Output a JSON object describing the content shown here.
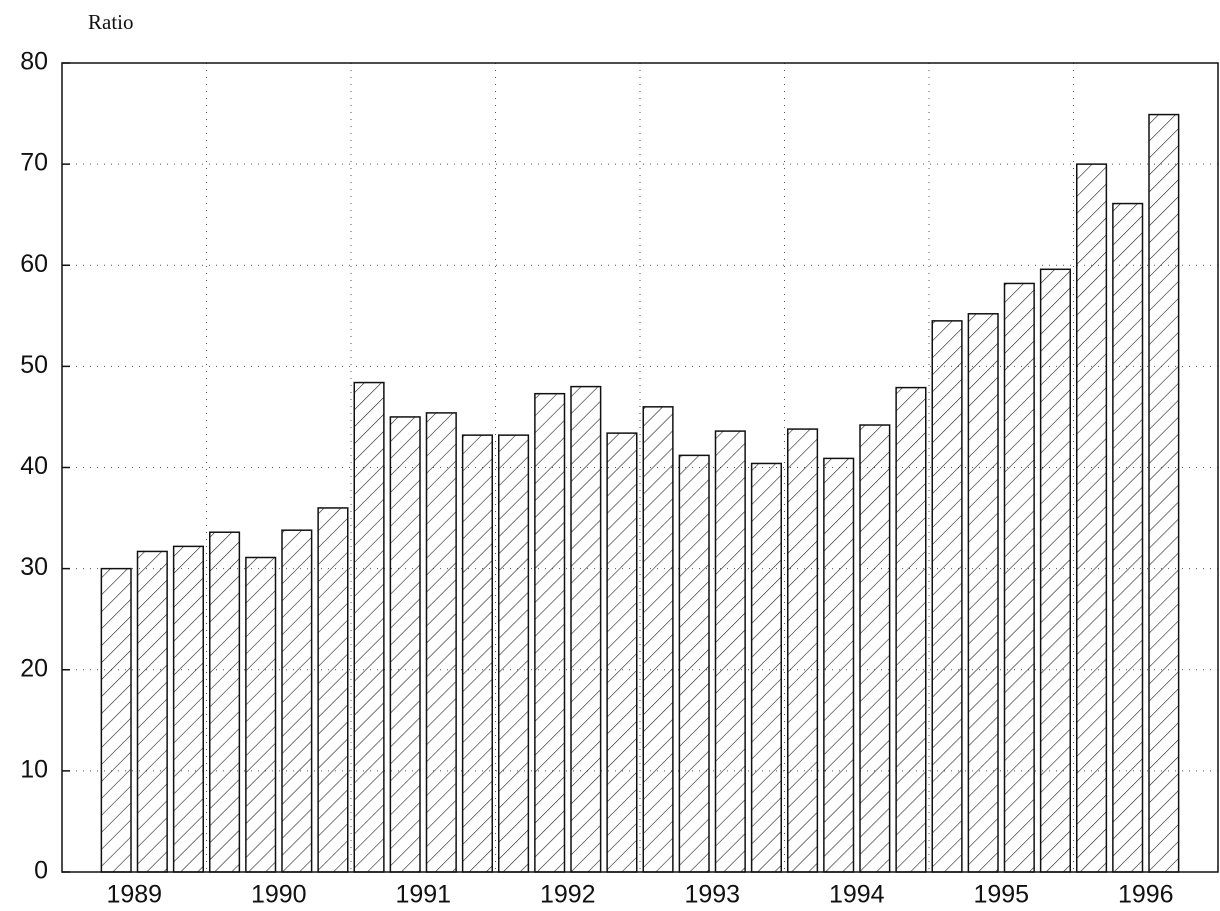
{
  "chart_data": {
    "type": "bar",
    "y_label": "Ratio",
    "groups": [
      {
        "label": "1989",
        "values": [
          30,
          31.7,
          32.2
        ]
      },
      {
        "label": "1990",
        "values": [
          33.6,
          31.1,
          33.8,
          36
        ]
      },
      {
        "label": "1991",
        "values": [
          48.4,
          45,
          45.4,
          43.2
        ]
      },
      {
        "label": "1992",
        "values": [
          43.2,
          47.3,
          48,
          43.4
        ]
      },
      {
        "label": "1993",
        "values": [
          46,
          41.2,
          43.6,
          40.4
        ]
      },
      {
        "label": "1994",
        "values": [
          43.8,
          40.9,
          44.2,
          47.9
        ]
      },
      {
        "label": "1995",
        "values": [
          54.5,
          55.2,
          58.2,
          59.6
        ]
      },
      {
        "label": "1996",
        "values": [
          70,
          66.1,
          74.9
        ]
      }
    ],
    "color": "#111111",
    "ylim": [
      0,
      80
    ],
    "yticks": [
      0,
      10,
      20,
      30,
      40,
      50,
      60,
      70,
      80
    ],
    "grid": true
  }
}
